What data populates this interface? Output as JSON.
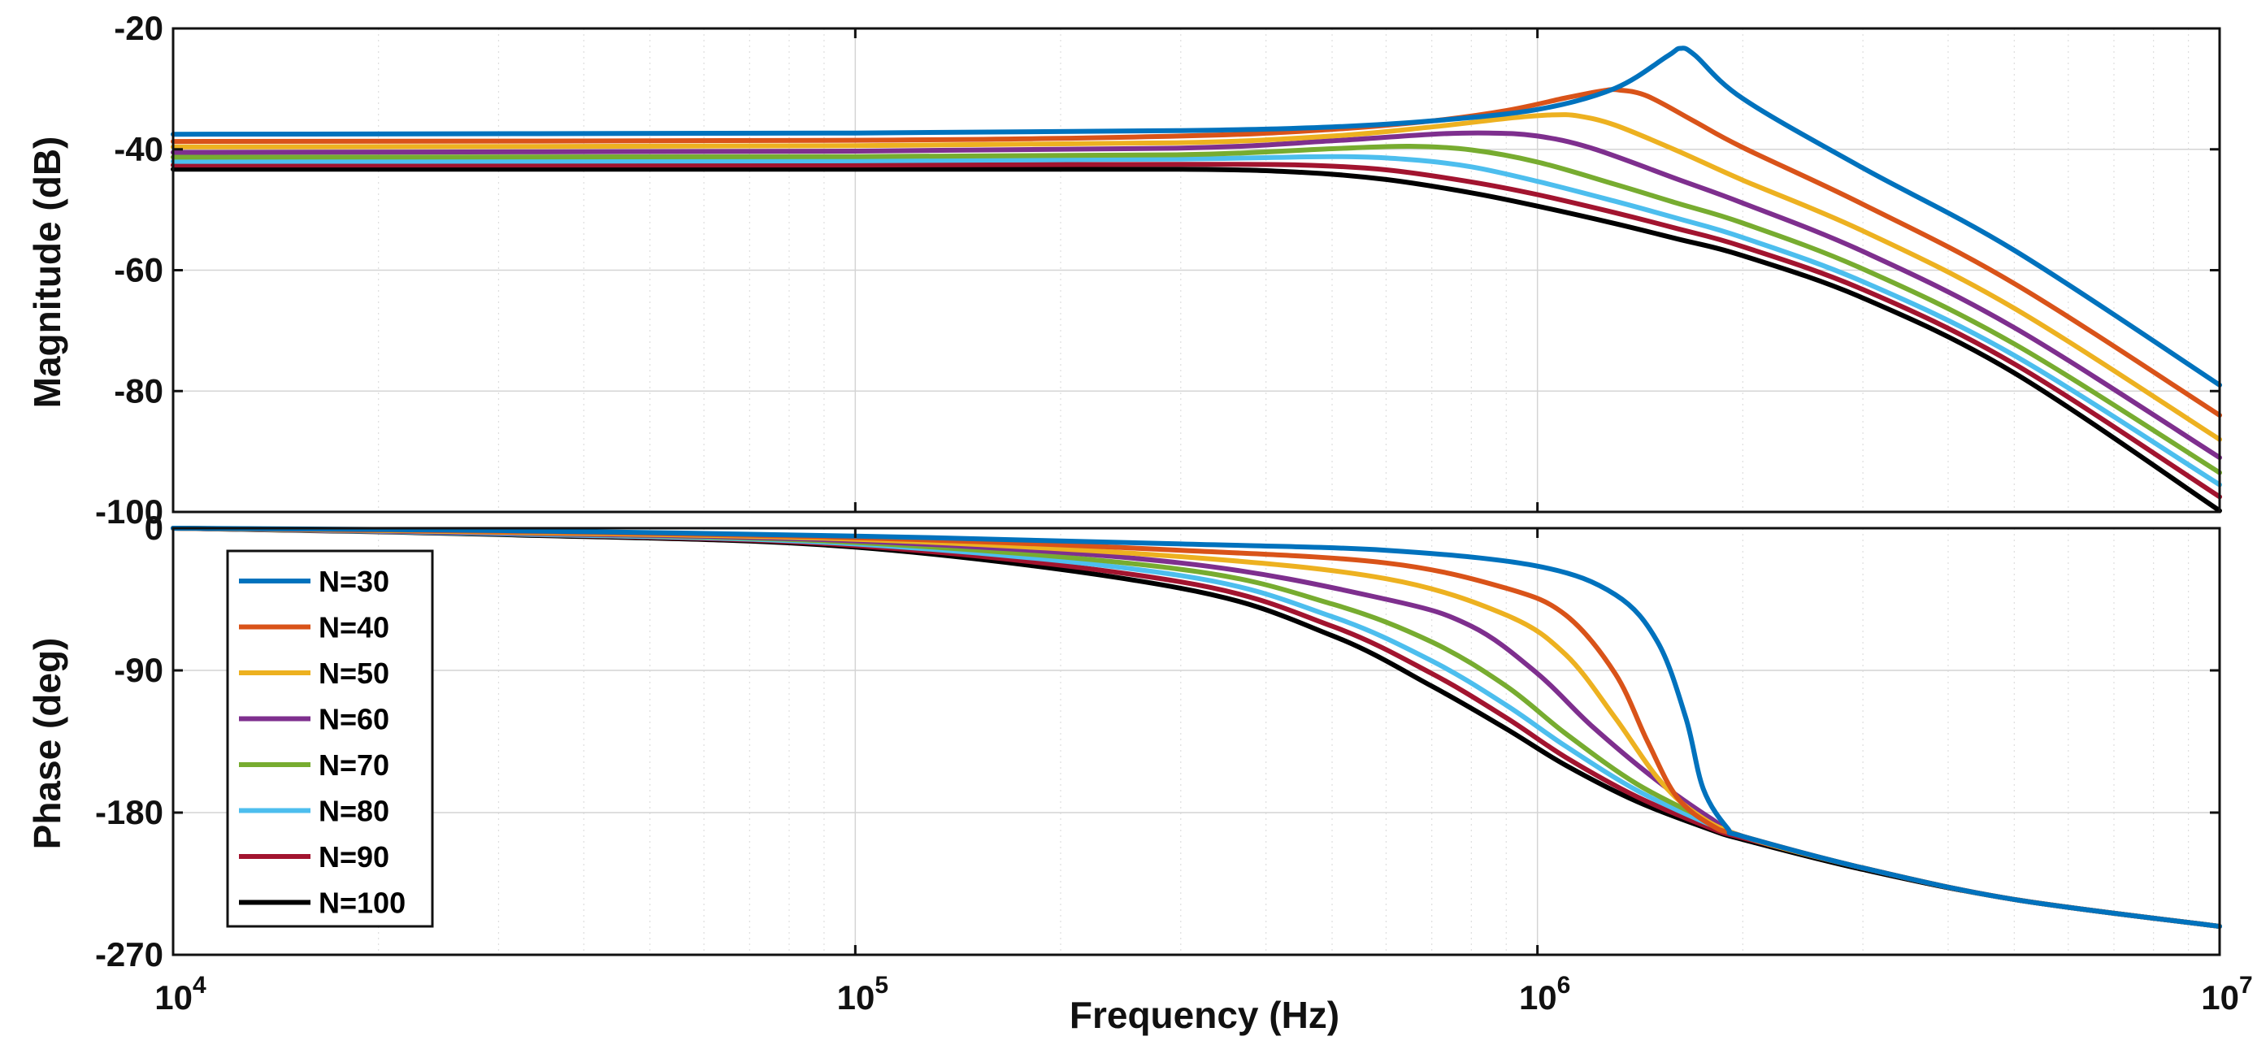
{
  "chart_data": [
    {
      "type": "line",
      "panel": "magnitude",
      "xscale": "log",
      "xlim": [
        10000,
        10000000
      ],
      "ylim": [
        -100,
        -20
      ],
      "ylabel": "Magnitude (dB)",
      "yticks": [
        "-20",
        "-40",
        "-60",
        "-80",
        "-100"
      ],
      "grid": true,
      "series": [
        {
          "name": "N=30",
          "color": "#0072BD",
          "x": [
            10000,
            100000,
            300000,
            500000,
            700000,
            1000000,
            1300000,
            1550000,
            1620000,
            1700000,
            2000000,
            3000000,
            5000000,
            10000000
          ],
          "y": [
            -37.5,
            -37.3,
            -36.9,
            -36.3,
            -35.3,
            -33.4,
            -29.9,
            -24.6,
            -23.3,
            -24.4,
            -31.6,
            -43.1,
            -56.7,
            -79.0
          ]
        },
        {
          "name": "N=40",
          "color": "#D95319",
          "x": [
            10000,
            100000,
            300000,
            500000,
            700000,
            900000,
            1100000,
            1250000,
            1320000,
            1450000,
            1700000,
            2000000,
            3000000,
            5000000,
            10000000
          ],
          "y": [
            -38.7,
            -38.5,
            -37.8,
            -36.7,
            -35.3,
            -33.6,
            -31.5,
            -30.3,
            -30.2,
            -31.2,
            -35.4,
            -39.7,
            -49.1,
            -62.2,
            -84.0
          ]
        },
        {
          "name": "N=50",
          "color": "#EDB120",
          "x": [
            10000,
            100000,
            300000,
            500000,
            700000,
            900000,
            1050000,
            1150000,
            1300000,
            1600000,
            2000000,
            3000000,
            5000000,
            10000000
          ],
          "y": [
            -39.6,
            -39.4,
            -38.9,
            -37.8,
            -36.3,
            -34.9,
            -34.3,
            -34.5,
            -36.0,
            -40.2,
            -45.1,
            -53.5,
            -66.3,
            -88.0
          ]
        },
        {
          "name": "N=60",
          "color": "#7E2F8E",
          "x": [
            10000,
            100000,
            300000,
            500000,
            700000,
            850000,
            1000000,
            1200000,
            1600000,
            2000000,
            3000000,
            5000000,
            10000000
          ],
          "y": [
            -40.5,
            -40.3,
            -39.8,
            -38.6,
            -37.5,
            -37.3,
            -37.8,
            -39.8,
            -44.9,
            -48.9,
            -56.9,
            -69.5,
            -91.0
          ]
        },
        {
          "name": "N=70",
          "color": "#77AC30",
          "x": [
            10000,
            100000,
            300000,
            500000,
            650000,
            800000,
            1000000,
            1300000,
            1600000,
            2000000,
            3000000,
            5000000,
            10000000
          ],
          "y": [
            -41.3,
            -41.2,
            -40.9,
            -39.9,
            -39.5,
            -40.1,
            -42.1,
            -45.8,
            -48.9,
            -52.2,
            -59.8,
            -72.2,
            -93.5
          ]
        },
        {
          "name": "N=80",
          "color": "#4DBEEE",
          "x": [
            10000,
            100000,
            300000,
            500000,
            650000,
            800000,
            1000000,
            1300000,
            1600000,
            2000000,
            3000000,
            5000000,
            10000000
          ],
          "y": [
            -42.0,
            -41.9,
            -41.6,
            -41.2,
            -41.7,
            -42.9,
            -45.3,
            -48.6,
            -51.4,
            -54.6,
            -61.9,
            -74.1,
            -95.5
          ]
        },
        {
          "name": "N=90",
          "color": "#A2142F",
          "x": [
            10000,
            100000,
            300000,
            450000,
            600000,
            800000,
            1000000,
            1300000,
            1600000,
            2000000,
            3000000,
            5000000,
            10000000
          ],
          "y": [
            -42.6,
            -42.6,
            -42.5,
            -42.6,
            -43.4,
            -45.4,
            -47.5,
            -50.5,
            -53.1,
            -56.1,
            -63.2,
            -75.5,
            -97.5
          ]
        },
        {
          "name": "N=100",
          "color": "#000000",
          "x": [
            10000,
            100000,
            300000,
            450000,
            600000,
            800000,
            1000000,
            1300000,
            1600000,
            2000000,
            3000000,
            5000000,
            10000000
          ],
          "y": [
            -43.3,
            -43.3,
            -43.3,
            -43.8,
            -45.0,
            -47.2,
            -49.4,
            -52.3,
            -54.8,
            -57.6,
            -64.6,
            -77.0,
            -99.8
          ]
        }
      ]
    },
    {
      "type": "line",
      "panel": "phase",
      "xscale": "log",
      "xlim": [
        10000,
        10000000
      ],
      "ylim": [
        -270,
        0
      ],
      "xlabel": "Frequency  (Hz)",
      "ylabel": "Phase (deg)",
      "yticks": [
        "0",
        "-90",
        "-180",
        "-270"
      ],
      "xticks": [
        {
          "base": "10",
          "exp": "4"
        },
        {
          "base": "10",
          "exp": "5"
        },
        {
          "base": "10",
          "exp": "6"
        },
        {
          "base": "10",
          "exp": "7"
        }
      ],
      "grid": true,
      "legend_position": "top-left",
      "series": [
        {
          "name": "N=30",
          "color": "#0072BD",
          "x": [
            10000,
            30000,
            100000,
            300000,
            600000,
            1000000,
            1300000,
            1500000,
            1650000,
            1750000,
            1900000,
            2000000,
            3000000,
            5000000,
            10000000
          ],
          "y": [
            0,
            -1.5,
            -5,
            -10,
            -14,
            -24,
            -42,
            -72,
            -120,
            -165,
            -190,
            -195,
            -215,
            -235,
            -252
          ]
        },
        {
          "name": "N=40",
          "color": "#D95319",
          "x": [
            10000,
            30000,
            100000,
            300000,
            600000,
            900000,
            1100000,
            1300000,
            1450000,
            1600000,
            1800000,
            2000000,
            3000000,
            5000000,
            10000000
          ],
          "y": [
            0,
            -2,
            -6,
            -14,
            -22,
            -38,
            -55,
            -92,
            -135,
            -170,
            -188,
            -195,
            -215,
            -235,
            -252
          ]
        },
        {
          "name": "N=50",
          "color": "#EDB120",
          "x": [
            10000,
            30000,
            100000,
            300000,
            600000,
            900000,
            1100000,
            1300000,
            1500000,
            1700000,
            2000000,
            3000000,
            5000000,
            10000000
          ],
          "y": [
            0,
            -2.5,
            -7,
            -18,
            -32,
            -55,
            -80,
            -120,
            -158,
            -180,
            -195,
            -215,
            -235,
            -252
          ]
        },
        {
          "name": "N=60",
          "color": "#7E2F8E",
          "x": [
            10000,
            30000,
            100000,
            300000,
            600000,
            800000,
            1000000,
            1200000,
            1500000,
            1800000,
            2000000,
            3000000,
            5000000,
            10000000
          ],
          "y": [
            0,
            -3,
            -8,
            -22,
            -45,
            -62,
            -92,
            -125,
            -160,
            -184,
            -195,
            -215,
            -235,
            -252
          ]
        },
        {
          "name": "N=70",
          "color": "#77AC30",
          "x": [
            10000,
            30000,
            100000,
            300000,
            500000,
            700000,
            900000,
            1100000,
            1400000,
            1800000,
            2000000,
            3000000,
            5000000,
            10000000
          ],
          "y": [
            0,
            -3,
            -9,
            -26,
            -48,
            -72,
            -100,
            -130,
            -162,
            -186,
            -195,
            -215,
            -235,
            -252
          ]
        },
        {
          "name": "N=80",
          "color": "#4DBEEE",
          "x": [
            10000,
            30000,
            100000,
            300000,
            500000,
            700000,
            900000,
            1100000,
            1400000,
            1800000,
            2000000,
            3000000,
            5000000,
            10000000
          ],
          "y": [
            0,
            -3.5,
            -10,
            -30,
            -56,
            -84,
            -112,
            -138,
            -166,
            -188,
            -195,
            -215,
            -235,
            -252
          ]
        },
        {
          "name": "N=90",
          "color": "#A2142F",
          "x": [
            10000,
            30000,
            100000,
            300000,
            500000,
            700000,
            900000,
            1100000,
            1400000,
            1800000,
            2000000,
            3000000,
            5000000,
            10000000
          ],
          "y": [
            0,
            -3.5,
            -11,
            -34,
            -62,
            -92,
            -120,
            -145,
            -170,
            -190,
            -196,
            -215,
            -235,
            -252
          ]
        },
        {
          "name": "N=100",
          "color": "#000000",
          "x": [
            10000,
            30000,
            100000,
            300000,
            500000,
            700000,
            900000,
            1100000,
            1400000,
            1800000,
            2000000,
            3000000,
            5000000,
            10000000
          ],
          "y": [
            0,
            -4,
            -12,
            -38,
            -68,
            -100,
            -127,
            -150,
            -173,
            -191,
            -197,
            -216,
            -235,
            -252
          ]
        }
      ]
    }
  ]
}
